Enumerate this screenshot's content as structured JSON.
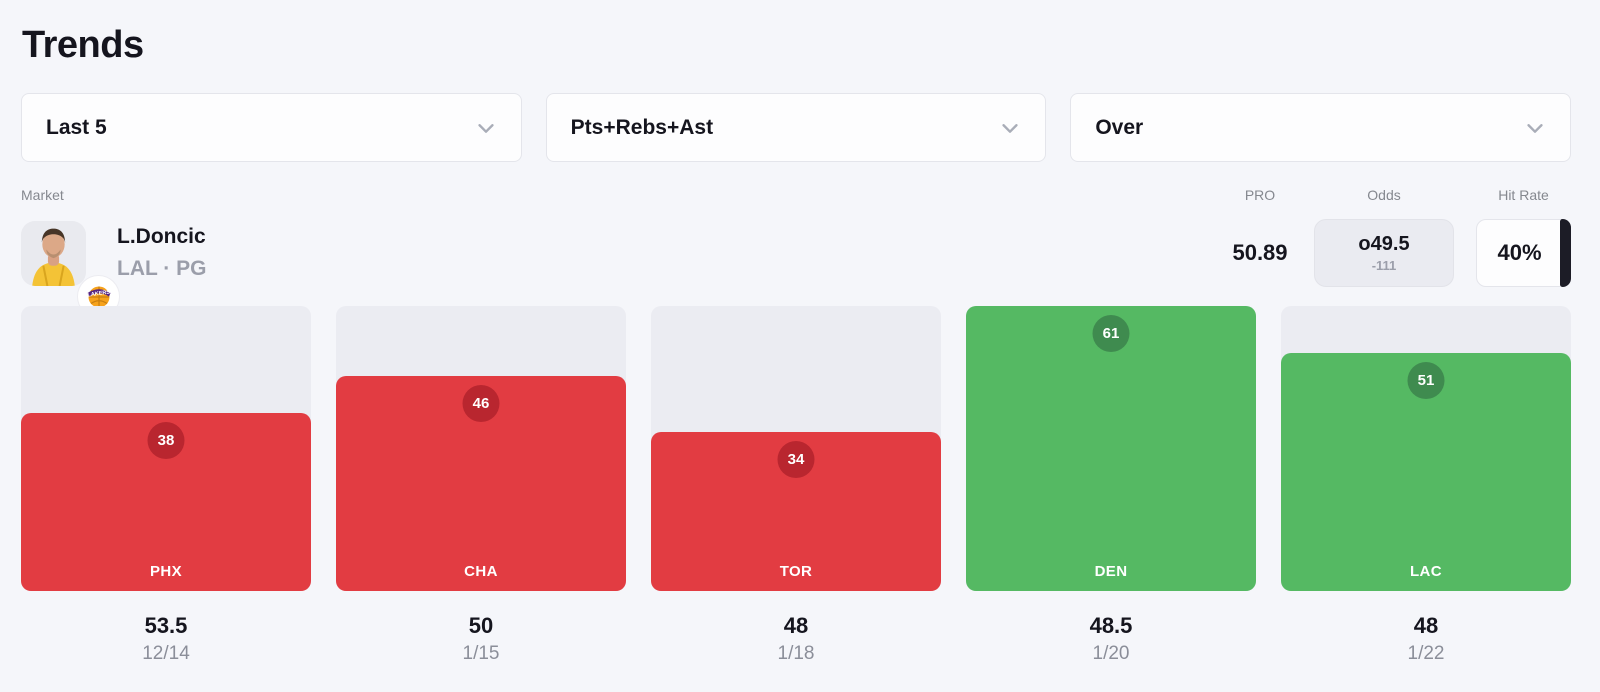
{
  "page": {
    "title": "Trends"
  },
  "filters": {
    "timeframe": {
      "value": "Last 5"
    },
    "market": {
      "value": "Pts+Rebs+Ast"
    },
    "side": {
      "value": "Over"
    }
  },
  "table_header": {
    "market": "Market",
    "pro": "PRO",
    "odds": "Odds",
    "hit_rate": "Hit Rate"
  },
  "player": {
    "name": "L.Doncic",
    "team_position": "LAL · PG",
    "pro_value": "50.89",
    "odds_line": "o49.5",
    "odds_price": "-111",
    "hit_rate": "40%"
  },
  "chart_data": {
    "type": "bar",
    "categories": [
      "PHX",
      "CHA",
      "TOR",
      "DEN",
      "LAC"
    ],
    "values": [
      38,
      46,
      34,
      61,
      51
    ],
    "lines": [
      "53.5",
      "50",
      "48",
      "48.5",
      "48"
    ],
    "dates": [
      "12/14",
      "1/15",
      "1/18",
      "1/20",
      "1/22"
    ],
    "hit": [
      false,
      false,
      false,
      true,
      true
    ],
    "ylim": [
      0,
      61
    ],
    "legend": "green = over line (hit), red = under line (miss)",
    "colors": {
      "over": "#55b963",
      "over_badge": "#3f8b4f",
      "under": "#e23c42",
      "under_badge": "#b9262f",
      "track": "#ebecf2",
      "accent_dark": "#1c1c26"
    }
  }
}
